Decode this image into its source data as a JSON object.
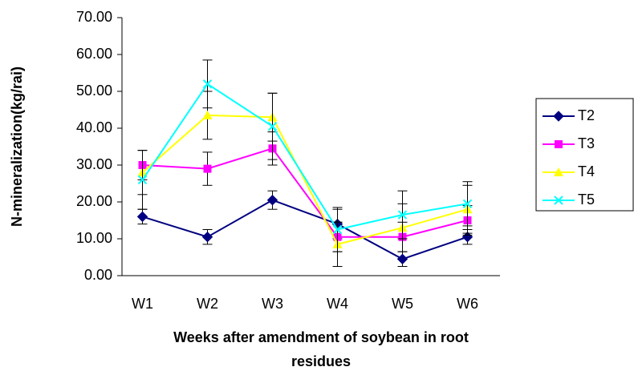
{
  "chart_data": {
    "type": "line",
    "ylabel": "N-mineralization(kg/rai)",
    "xlabel": "Weeks after amendment of soybean in root residues",
    "categories": [
      "W1",
      "W2",
      "W3",
      "W4",
      "W5",
      "W6"
    ],
    "ylim": [
      0,
      70
    ],
    "yticks": [
      {
        "value": 0,
        "label": "0.00"
      },
      {
        "value": 10,
        "label": "10.00"
      },
      {
        "value": 20,
        "label": "20.00"
      },
      {
        "value": 30,
        "label": "30.00"
      },
      {
        "value": 40,
        "label": "40.00"
      },
      {
        "value": 50,
        "label": "50.00"
      },
      {
        "value": 60,
        "label": "60.00"
      },
      {
        "value": 70,
        "label": "70.00"
      }
    ],
    "grid": false,
    "legend": "right",
    "series": [
      {
        "name": "T2",
        "color": "#000080",
        "marker": "diamond",
        "values": [
          16,
          10.5,
          20.5,
          14,
          4.5,
          10.5
        ],
        "errors": [
          2,
          2,
          2.5,
          4,
          2,
          2
        ]
      },
      {
        "name": "T3",
        "color": "#ff00ff",
        "marker": "square",
        "values": [
          30,
          29,
          34.5,
          10.5,
          10.5,
          15
        ],
        "errors": [
          4,
          4.5,
          4.5,
          4,
          4,
          4
        ]
      },
      {
        "name": "T4",
        "color": "#ffff00",
        "marker": "triangle",
        "values": [
          28,
          43.5,
          43,
          8.5,
          13,
          18
        ],
        "errors": [
          6,
          6.5,
          6.5,
          6,
          6.5,
          6.5
        ]
      },
      {
        "name": "T5",
        "color": "#00ffff",
        "marker": "x",
        "values": [
          26,
          52,
          40.5,
          12.5,
          16.5,
          19.5
        ],
        "errors": [
          8,
          6.5,
          9,
          6,
          6.5,
          6
        ]
      }
    ]
  }
}
